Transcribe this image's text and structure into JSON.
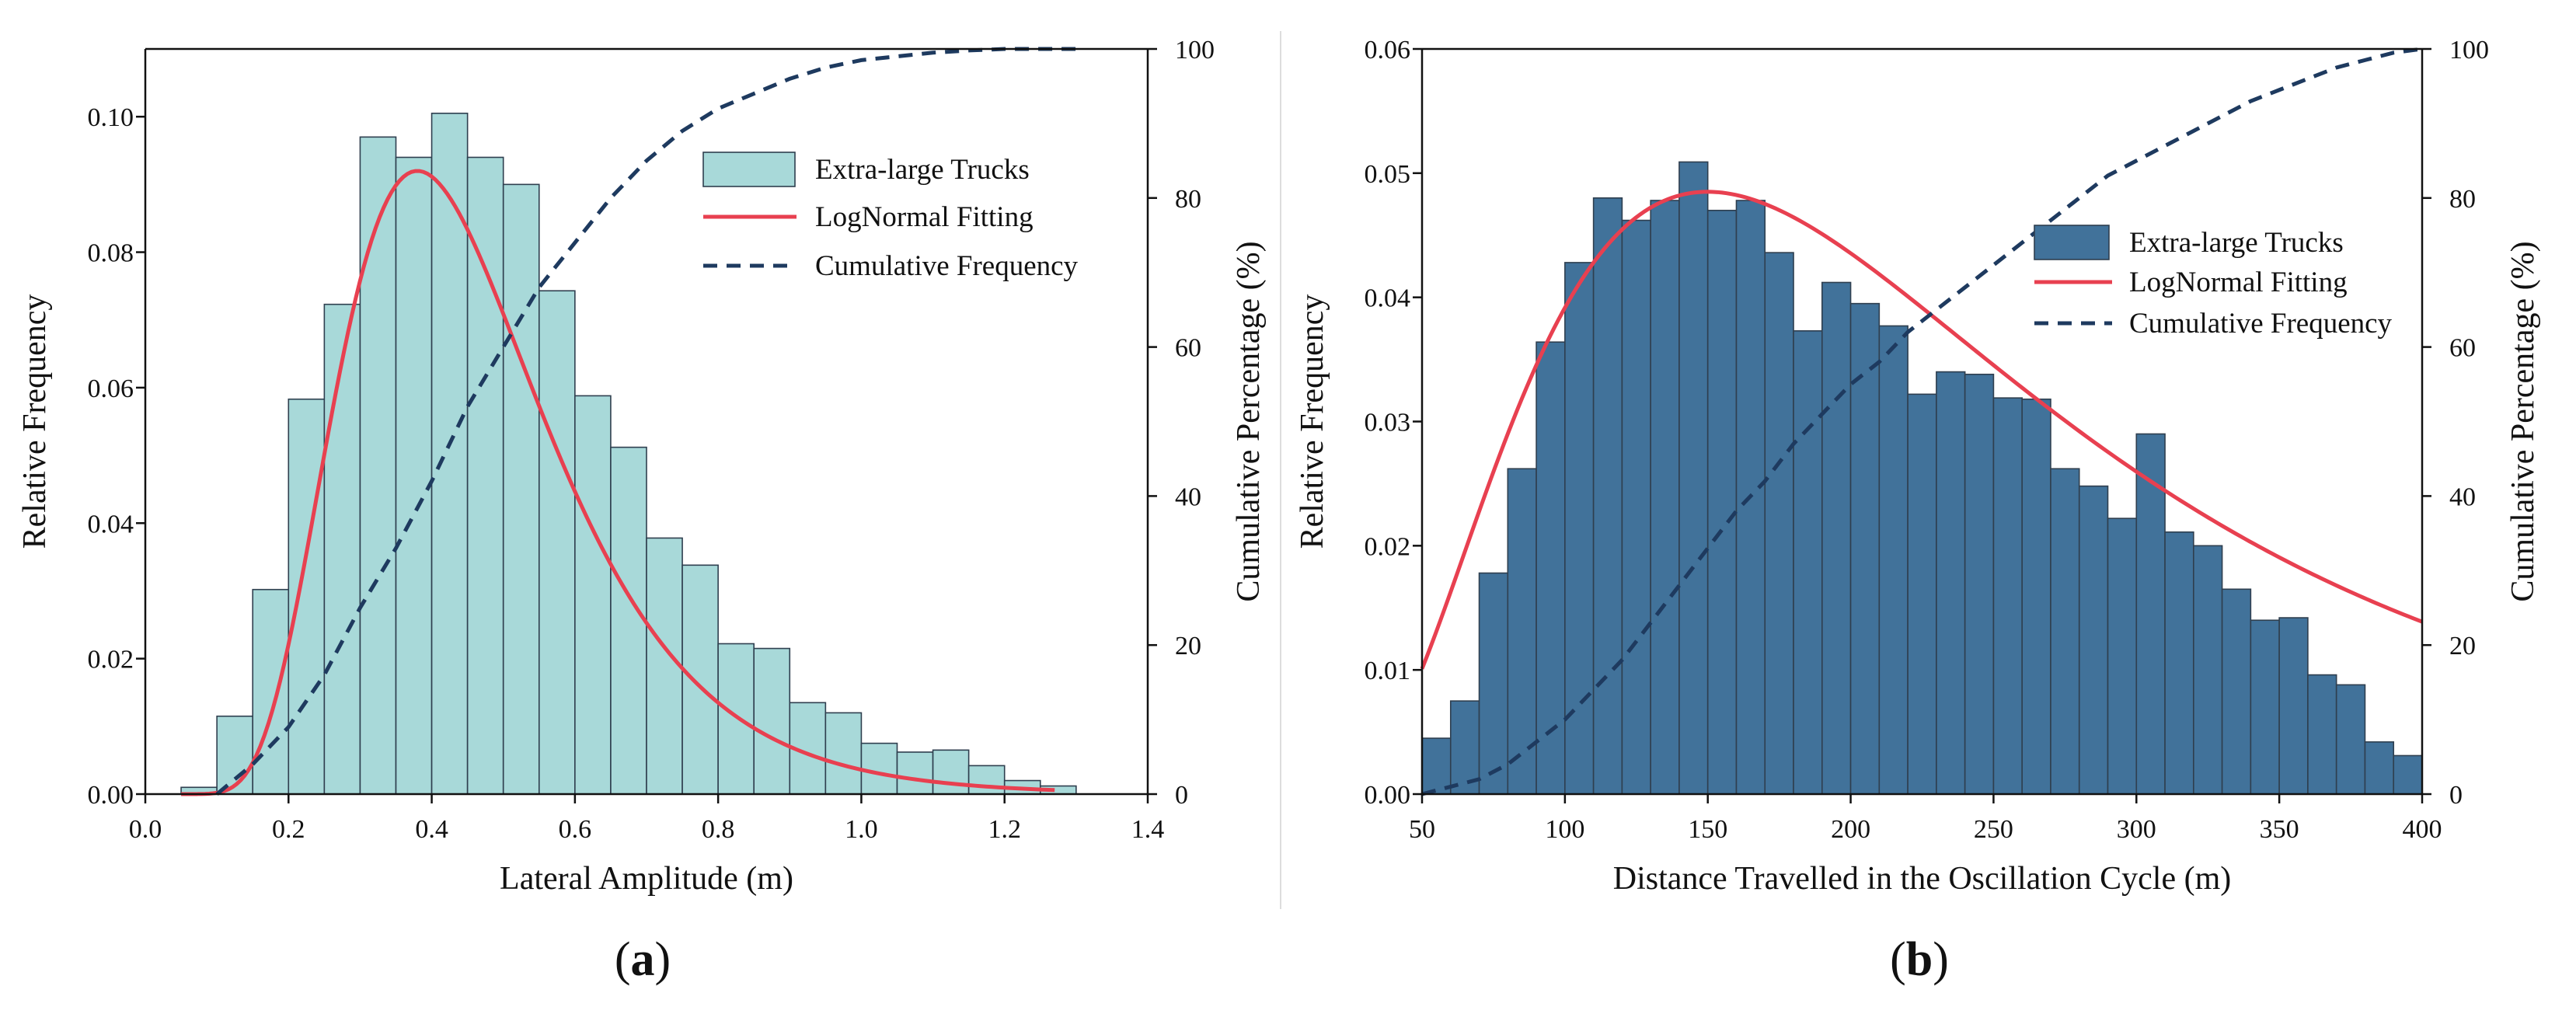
{
  "figure": {
    "panel_labels": [
      {
        "open": "(",
        "letter": "a",
        "close": ")"
      },
      {
        "open": "(",
        "letter": "b",
        "close": ")"
      }
    ]
  },
  "chart_data": [
    {
      "type": "bar",
      "panel": "a",
      "xlabel": "Lateral Amplitude (m)",
      "ylabel": "Relative Frequency",
      "y2label": "Cumulative Percentage (%)",
      "xlim": [
        0.0,
        1.4
      ],
      "ylim": [
        0.0,
        0.11
      ],
      "y2lim": [
        0,
        100
      ],
      "xticks": [
        "0.0",
        "0.2",
        "0.4",
        "0.6",
        "0.8",
        "1.0",
        "1.2",
        "1.4"
      ],
      "xtick_values": [
        0.0,
        0.2,
        0.4,
        0.6,
        0.8,
        1.0,
        1.2,
        1.4
      ],
      "yticks": [
        "0.00",
        "0.02",
        "0.04",
        "0.06",
        "0.08",
        "0.10"
      ],
      "ytick_values": [
        0.0,
        0.02,
        0.04,
        0.06,
        0.08,
        0.1
      ],
      "y2ticks": [
        "0",
        "20",
        "40",
        "60",
        "80",
        "100"
      ],
      "y2tick_values": [
        0,
        20,
        40,
        60,
        80,
        100
      ],
      "bar_color": "#a8d9d9",
      "bin_width": 0.05,
      "bin_starts": [
        0.05,
        0.1,
        0.15,
        0.2,
        0.25,
        0.3,
        0.35,
        0.4,
        0.45,
        0.5,
        0.55,
        0.6,
        0.65,
        0.7,
        0.75,
        0.8,
        0.85,
        0.9,
        0.95,
        1.0,
        1.05,
        1.1,
        1.15,
        1.2,
        1.25
      ],
      "values": [
        0.001,
        0.0115,
        0.0302,
        0.0583,
        0.0723,
        0.097,
        0.094,
        0.1005,
        0.094,
        0.09,
        0.0743,
        0.0588,
        0.0512,
        0.0378,
        0.0338,
        0.0222,
        0.0215,
        0.0135,
        0.012,
        0.0075,
        0.0062,
        0.0065,
        0.0042,
        0.002,
        0.0012
      ],
      "fit_curve": {
        "name": "LogNormal Fitting",
        "color": "#e84050",
        "x_range": [
          0.05,
          1.27
        ],
        "peak_x": 0.38,
        "peak_y": 0.092
      },
      "cumulative": {
        "name": "Cumulative Frequency",
        "color": "#1e3a5f",
        "x": [
          0.1,
          0.15,
          0.2,
          0.25,
          0.3,
          0.35,
          0.4,
          0.45,
          0.5,
          0.55,
          0.6,
          0.65,
          0.7,
          0.75,
          0.8,
          0.85,
          0.9,
          0.95,
          1.0,
          1.05,
          1.1,
          1.15,
          1.2,
          1.25,
          1.3
        ],
        "y": [
          0,
          4,
          9,
          16,
          25,
          33,
          42,
          52,
          60,
          68,
          74,
          80,
          85,
          89,
          92,
          94,
          96,
          97.5,
          98.5,
          99,
          99.5,
          99.8,
          100,
          100,
          100
        ]
      },
      "legend": {
        "placement": "top-right",
        "entries": [
          "Extra-large Trucks",
          "LogNormal Fitting",
          "Cumulative Frequency"
        ]
      }
    },
    {
      "type": "bar",
      "panel": "b",
      "xlabel": "Distance Travelled in the Oscillation Cycle (m)",
      "ylabel": "Relative Frequency",
      "y2label": "Cumulative Percentage (%)",
      "xlim": [
        50,
        400
      ],
      "ylim": [
        0.0,
        0.06
      ],
      "y2lim": [
        0,
        100
      ],
      "xticks": [
        "50",
        "100",
        "150",
        "200",
        "250",
        "300",
        "350",
        "400"
      ],
      "xtick_values": [
        50,
        100,
        150,
        200,
        250,
        300,
        350,
        400
      ],
      "yticks": [
        "0.00",
        "0.01",
        "0.02",
        "0.03",
        "0.04",
        "0.05",
        "0.06"
      ],
      "ytick_values": [
        0.0,
        0.01,
        0.02,
        0.03,
        0.04,
        0.05,
        0.06
      ],
      "y2ticks": [
        "0",
        "20",
        "40",
        "60",
        "80",
        "100"
      ],
      "y2tick_values": [
        0,
        20,
        40,
        60,
        80,
        100
      ],
      "bar_color": "#41729a",
      "bin_width": 10,
      "bin_starts": [
        50,
        60,
        70,
        80,
        90,
        100,
        110,
        120,
        130,
        140,
        150,
        160,
        170,
        180,
        190,
        200,
        210,
        220,
        230,
        240,
        250,
        260,
        270,
        280,
        290,
        300,
        310,
        320,
        330,
        340,
        350,
        360,
        370,
        380,
        390
      ],
      "values": [
        0.0045,
        0.0075,
        0.0178,
        0.0262,
        0.0364,
        0.0428,
        0.048,
        0.0462,
        0.0478,
        0.0509,
        0.047,
        0.0478,
        0.0436,
        0.0373,
        0.0412,
        0.0395,
        0.0377,
        0.0322,
        0.034,
        0.0338,
        0.0319,
        0.0318,
        0.0262,
        0.0248,
        0.0222,
        0.029,
        0.0211,
        0.02,
        0.0165,
        0.014,
        0.0142,
        0.0096,
        0.0088,
        0.0042,
        0.0031
      ],
      "fit_curve": {
        "name": "LogNormal Fitting",
        "color": "#e84050",
        "x_range": [
          50,
          400
        ],
        "peak_x": 150,
        "peak_y": 0.0485
      },
      "cumulative": {
        "name": "Cumulative Frequency",
        "color": "#1e3a5f",
        "x": [
          50,
          60,
          70,
          80,
          90,
          100,
          110,
          120,
          130,
          140,
          150,
          160,
          170,
          180,
          190,
          200,
          210,
          220,
          230,
          240,
          250,
          260,
          270,
          280,
          290,
          300,
          310,
          320,
          330,
          340,
          350,
          360,
          370,
          380,
          390,
          400
        ],
        "y": [
          0,
          1,
          2,
          4,
          7,
          10,
          14,
          18,
          23,
          28,
          33,
          38,
          42,
          47,
          51,
          55,
          58,
          62,
          65,
          68,
          71,
          74,
          77,
          80,
          83,
          85,
          87,
          89,
          91,
          93,
          94.5,
          96,
          97.5,
          98.5,
          99.5,
          100
        ]
      },
      "legend": {
        "placement": "top-right",
        "entries": [
          "Extra-large Trucks",
          "LogNormal Fitting",
          "Cumulative Frequency"
        ]
      }
    }
  ]
}
